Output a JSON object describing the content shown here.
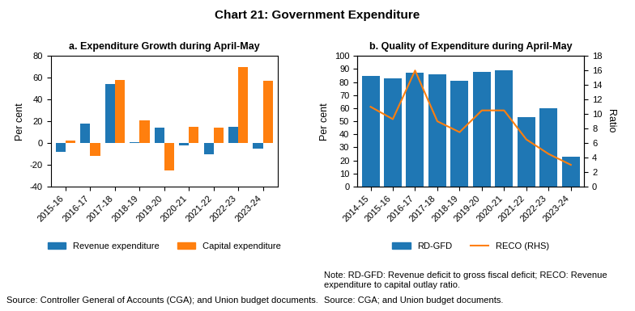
{
  "title": "Chart 21: Government Expenditure",
  "chart_data": [
    {
      "type": "bar",
      "title": "a. Expenditure Growth during April-May",
      "categories": [
        "2015-16",
        "2016-17",
        "2017-18",
        "2018-19",
        "2019-20",
        "2020-21",
        "2021-22",
        "2022-23",
        "2023-24"
      ],
      "series": [
        {
          "name": "Revenue expenditure",
          "type": "bar",
          "values": [
            -8,
            18,
            54,
            1,
            14,
            -2,
            -10,
            15,
            -5
          ]
        },
        {
          "name": "Capital expenditure",
          "type": "bar",
          "values": [
            2,
            -12,
            58,
            21,
            -25,
            15,
            14,
            70,
            57
          ]
        }
      ],
      "ylabel": "Per cent",
      "ylim": [
        -40,
        80
      ],
      "yticks": [
        -40,
        -20,
        0,
        20,
        40,
        60,
        80
      ],
      "legend": "lower center",
      "annotations": [
        "Source: Controller General of Accounts (CGA); and Union budget documents."
      ]
    },
    {
      "type": "bar",
      "title": "b. Quality of Expenditure during April-May",
      "categories": [
        "2014-15",
        "2015-16",
        "2016-17",
        "2017-18",
        "2018-19",
        "2019-20",
        "2020-21",
        "2021-22",
        "2022-23",
        "2023-24"
      ],
      "series": [
        {
          "name": "RD-GFD",
          "type": "bar",
          "values": [
            85,
            83,
            87,
            86,
            81,
            88,
            89,
            53,
            60,
            23
          ]
        },
        {
          "name": "RECO (RHS)",
          "type": "line",
          "axis": "y2",
          "values": [
            11,
            9.3,
            16,
            9,
            7.5,
            10.5,
            10.5,
            6.5,
            4.5,
            3
          ]
        }
      ],
      "ylabel": "Per cent",
      "y2label": "Ratio",
      "ylim": [
        0,
        100
      ],
      "yticks": [
        0,
        10,
        20,
        30,
        40,
        50,
        60,
        70,
        80,
        90,
        100
      ],
      "y2lim": [
        0,
        18
      ],
      "y2ticks": [
        0,
        2,
        4,
        6,
        8,
        10,
        12,
        14,
        16,
        18
      ],
      "legend": "lower center",
      "annotations": [
        "Note: RD-GFD: Revenue deficit to gross fiscal deficit; RECO: Revenue expenditure to capital outlay ratio.",
        "Source: CGA; and Union budget documents."
      ]
    }
  ]
}
